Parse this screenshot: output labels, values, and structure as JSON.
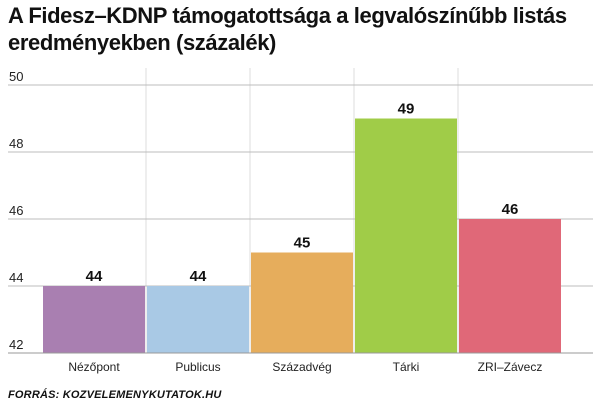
{
  "title": "A Fidesz–KDNP támogatottsága a legvalószínűbb listás eredményekben (százalék)",
  "source": "FORRÁS: KOZVELEMENYKUTATOK.HU",
  "chart_data": {
    "type": "bar",
    "title": "A Fidesz–KDNP támogatottsága a legvalószínűbb listás eredményekben (százalék)",
    "categories": [
      "Nézőpont",
      "Publicus",
      "Századvég",
      "Tárki",
      "ZRI–Závecz"
    ],
    "values": [
      44,
      44,
      45,
      49,
      46
    ],
    "data_labels": [
      "44",
      "44",
      "45",
      "49",
      "46"
    ],
    "colors": [
      "#a97fb1",
      "#a9c9e5",
      "#e6ad5c",
      "#a0cc48",
      "#e06878"
    ],
    "ylim": [
      42,
      50
    ],
    "yticks": [
      42,
      44,
      46,
      48,
      50
    ],
    "grid": true,
    "legend": "none",
    "xlabel": "",
    "ylabel": ""
  }
}
